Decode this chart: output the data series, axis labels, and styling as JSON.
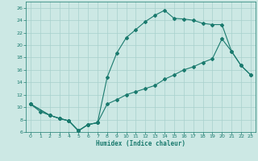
{
  "xlabel": "Humidex (Indice chaleur)",
  "xlim": [
    -0.5,
    23.5
  ],
  "ylim": [
    6,
    27
  ],
  "yticks": [
    6,
    8,
    10,
    12,
    14,
    16,
    18,
    20,
    22,
    24,
    26
  ],
  "xticks": [
    0,
    1,
    2,
    3,
    4,
    5,
    6,
    7,
    8,
    9,
    10,
    11,
    12,
    13,
    14,
    15,
    16,
    17,
    18,
    19,
    20,
    21,
    22,
    23
  ],
  "bg_color": "#cce8e4",
  "grid_color": "#a8d0cc",
  "line_color": "#1a7a6e",
  "line1_x": [
    0,
    1,
    2,
    3,
    4,
    5,
    6,
    7
  ],
  "line1_y": [
    10.5,
    9.3,
    8.7,
    8.2,
    7.8,
    6.2,
    7.2,
    7.5
  ],
  "line2_x": [
    0,
    2,
    3,
    4,
    5,
    6,
    7,
    8,
    9,
    10,
    11,
    12,
    13,
    14,
    15,
    16,
    17,
    18,
    19,
    20,
    21,
    22,
    23
  ],
  "line2_y": [
    10.5,
    8.7,
    8.2,
    7.8,
    6.2,
    7.2,
    7.5,
    10.5,
    11.2,
    12.0,
    12.5,
    13.0,
    13.5,
    14.5,
    15.2,
    16.0,
    16.5,
    17.2,
    17.8,
    21.0,
    19.0,
    16.7,
    15.2
  ],
  "line3_x": [
    0,
    2,
    3,
    4,
    5,
    6,
    7,
    8,
    9,
    10,
    11,
    12,
    13,
    14,
    15,
    16,
    17,
    18,
    19,
    20,
    21,
    22,
    23
  ],
  "line3_y": [
    10.5,
    8.7,
    8.2,
    7.8,
    6.2,
    7.2,
    7.5,
    14.8,
    18.7,
    21.2,
    22.5,
    23.8,
    24.8,
    25.6,
    24.3,
    24.2,
    24.0,
    23.5,
    23.3,
    23.3,
    19.0,
    16.7,
    15.2
  ],
  "markersize": 2.0,
  "linewidth": 0.8
}
